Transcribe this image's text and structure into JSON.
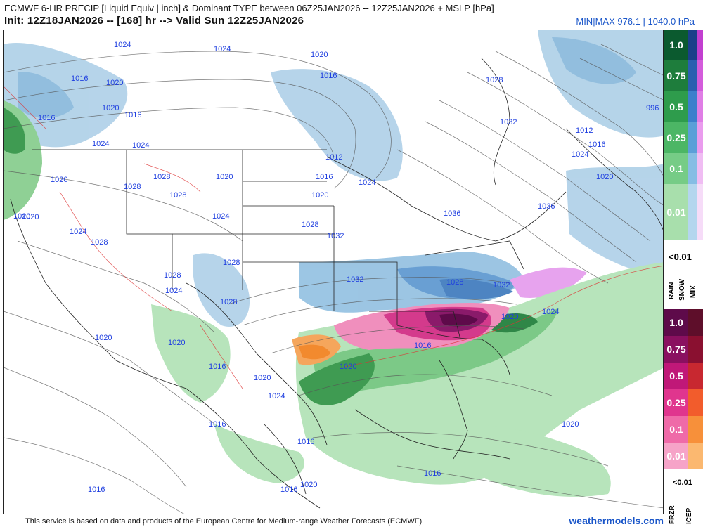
{
  "header": {
    "title_line1": "ECMWF 6-HR PRECIP [Liquid Equiv | inch] & Dominant TYPE between 06Z25JAN2026 -- 12Z25JAN2026 + MSLP [hPa]",
    "title_line2": "Init: 12Z18JAN2026 -- [168] hr --> Valid Sun 12Z25JAN2026",
    "minmax": "MIN|MAX 976.1 | 1040.0 hPa"
  },
  "isobar_labels": [
    "1024",
    "1024",
    "1020",
    "1016",
    "1020",
    "1016",
    "1020",
    "1016",
    "1024",
    "1024",
    "1020",
    "1028",
    "1028",
    "1020",
    "1028",
    "1024",
    "1016",
    "1020",
    "1012",
    "1016",
    "1024",
    "1028",
    "1032",
    "1036",
    "1036",
    "1032",
    "1012",
    "1016",
    "1024",
    "1020",
    "996",
    "1020",
    "1024",
    "1028",
    "1028",
    "1028",
    "1032",
    "1028",
    "1024",
    "1028",
    "1032",
    "1028",
    "1020",
    "1024",
    "1020",
    "1016",
    "1020",
    "1020",
    "1016",
    "1020",
    "1020",
    "1024",
    "1016",
    "1016",
    "1016",
    "1016",
    "1020",
    "1016",
    "1020"
  ],
  "legend": {
    "rain": {
      "label": "RAIN",
      "levels": [
        "1.0",
        "0.75",
        "0.5",
        "0.25",
        "0.1",
        "0.01"
      ],
      "colors": [
        "#0b5a2f",
        "#1e7d3c",
        "#2e9c4c",
        "#4cb665",
        "#76cc86",
        "#a8dfac"
      ]
    },
    "snow": {
      "label": "SNOW",
      "colors": [
        "#1a3f8a",
        "#2a5fb0",
        "#3b7fcc",
        "#5a9fd8",
        "#86bde4",
        "#b4d6ee"
      ]
    },
    "mix": {
      "label": "MIX",
      "colors": [
        "#c23fd0",
        "#d45cdc",
        "#e07ee6",
        "#ea9cee",
        "#f0bdf3",
        "#f6dcf8"
      ]
    },
    "below_threshold": "<0.01",
    "frzr": {
      "label": "FRZR",
      "levels": [
        "1.0",
        "0.75",
        "0.5",
        "0.25",
        "0.1",
        "0.01"
      ],
      "colors": [
        "#5e0a4a",
        "#8a1060",
        "#c01878",
        "#e0358e",
        "#ef6aa8",
        "#f6a3c8"
      ]
    },
    "icep": {
      "label": "ICEP",
      "colors": [
        "#5e0e2a",
        "#8a1030",
        "#c82830",
        "#f25c2c",
        "#f7903a",
        "#fbb870"
      ]
    },
    "below_threshold_2": "<0.01"
  },
  "footer": {
    "credit": "This service is based on data and products of the European Centre for Medium-range Weather Forecasts (ECMWF)",
    "brand": "weathermodels.com"
  }
}
